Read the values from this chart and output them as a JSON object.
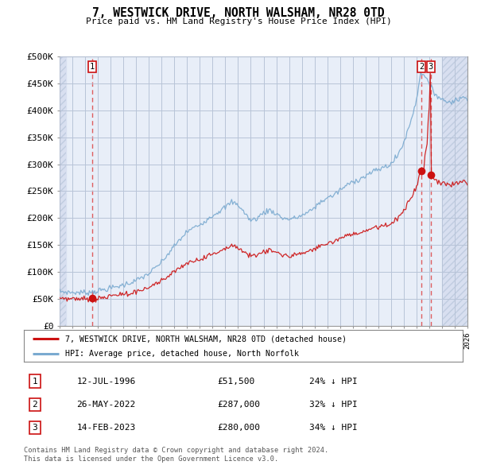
{
  "title": "7, WESTWICK DRIVE, NORTH WALSHAM, NR28 0TD",
  "subtitle": "Price paid vs. HM Land Registry's House Price Index (HPI)",
  "legend_line1": "7, WESTWICK DRIVE, NORTH WALSHAM, NR28 0TD (detached house)",
  "legend_line2": "HPI: Average price, detached house, North Norfolk",
  "transactions": [
    {
      "num": 1,
      "date": "12-JUL-1996",
      "price": 51500,
      "year": 1996.54,
      "hpi_pct": "24% ↓ HPI"
    },
    {
      "num": 2,
      "date": "26-MAY-2022",
      "price": 287000,
      "year": 2022.4,
      "hpi_pct": "32% ↓ HPI"
    },
    {
      "num": 3,
      "date": "14-FEB-2023",
      "price": 280000,
      "year": 2023.12,
      "hpi_pct": "34% ↓ HPI"
    }
  ],
  "footnote1": "Contains HM Land Registry data © Crown copyright and database right 2024.",
  "footnote2": "This data is licensed under the Open Government Licence v3.0.",
  "xmin": 1994,
  "xmax": 2026,
  "ymin": 0,
  "ymax": 500000,
  "yticks": [
    0,
    50000,
    100000,
    150000,
    200000,
    250000,
    300000,
    350000,
    400000,
    450000,
    500000
  ],
  "bg_color": "#ffffff",
  "plot_bg": "#e8eef8",
  "hatch_bg": "#d8dff0",
  "grid_color": "#b8c4d8",
  "hpi_color": "#7aaad0",
  "price_color": "#cc1111",
  "vline_color": "#dd4444",
  "hatch_start": 2024.0
}
